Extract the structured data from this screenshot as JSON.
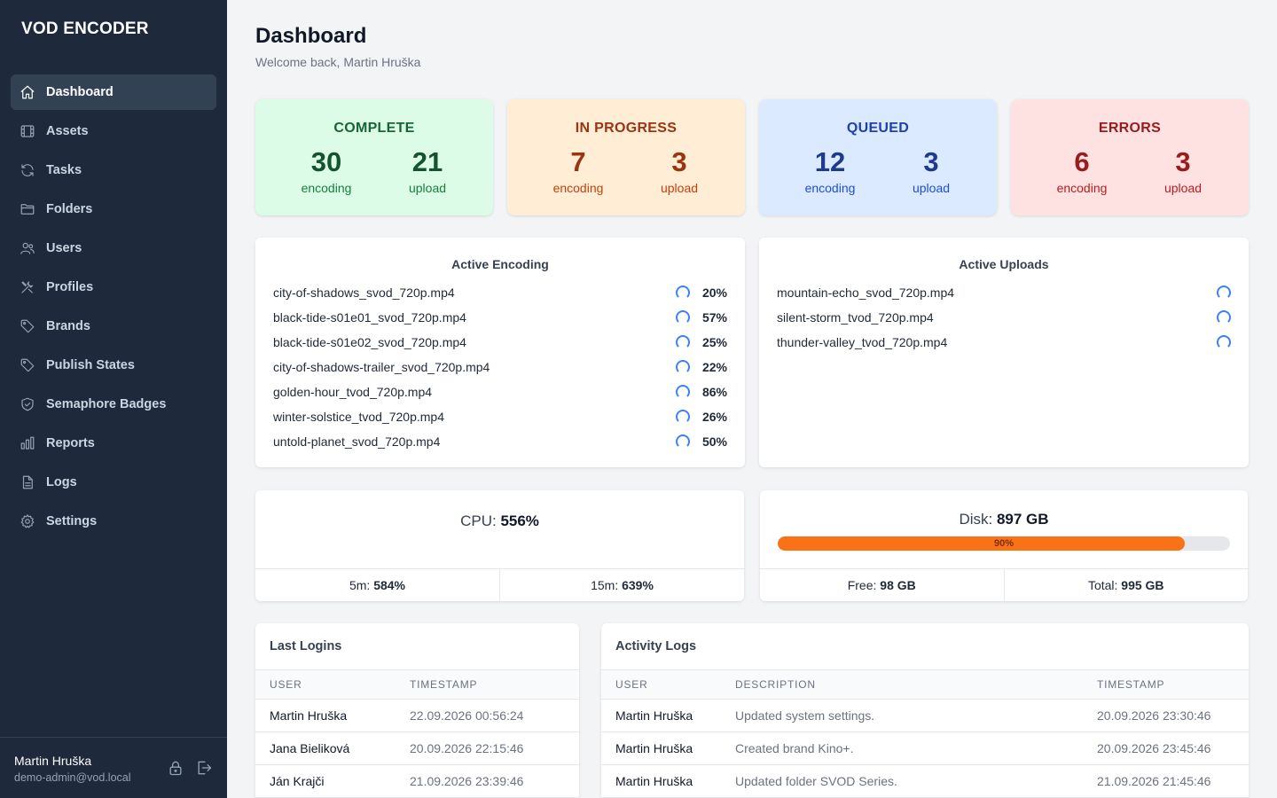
{
  "app": {
    "brand": "VOD ENCODER"
  },
  "sidebar": {
    "items": [
      {
        "label": "Dashboard",
        "icon": "home-icon",
        "active": true
      },
      {
        "label": "Assets",
        "icon": "film-icon"
      },
      {
        "label": "Tasks",
        "icon": "refresh-icon"
      },
      {
        "label": "Folders",
        "icon": "folder-icon"
      },
      {
        "label": "Users",
        "icon": "users-icon"
      },
      {
        "label": "Profiles",
        "icon": "tools-icon"
      },
      {
        "label": "Brands",
        "icon": "tag-icon"
      },
      {
        "label": "Publish States",
        "icon": "tag-icon"
      },
      {
        "label": "Semaphore Badges",
        "icon": "shield-icon"
      },
      {
        "label": "Reports",
        "icon": "bar-chart-icon"
      },
      {
        "label": "Logs",
        "icon": "document-icon"
      },
      {
        "label": "Settings",
        "icon": "gear-icon"
      }
    ],
    "user": {
      "name": "Martin Hruška",
      "email": "demo-admin@vod.local"
    }
  },
  "header": {
    "title": "Dashboard",
    "subtitle": "Welcome back, Martin Hruška"
  },
  "stats": [
    {
      "title": "COMPLETE",
      "encoding": "30",
      "upload": "21",
      "enc_label": "encoding",
      "up_label": "upload",
      "bg": "#dcfce7",
      "title_color": "#166534",
      "num_color": "#14532d",
      "label_color": "#15803d"
    },
    {
      "title": "IN PROGRESS",
      "encoding": "7",
      "upload": "3",
      "enc_label": "encoding",
      "up_label": "upload",
      "bg": "#ffedd5",
      "title_color": "#9a3412",
      "num_color": "#9a3412",
      "label_color": "#c2410c"
    },
    {
      "title": "QUEUED",
      "encoding": "12",
      "upload": "3",
      "enc_label": "encoding",
      "up_label": "upload",
      "bg": "#dbeafe",
      "title_color": "#1e40af",
      "num_color": "#1e3a8a",
      "label_color": "#1d4ed8"
    },
    {
      "title": "ERRORS",
      "encoding": "6",
      "upload": "3",
      "enc_label": "encoding",
      "up_label": "upload",
      "bg": "#fee2e2",
      "title_color": "#991b1b",
      "num_color": "#991b1b",
      "label_color": "#b91c1c"
    }
  ],
  "active_encoding": {
    "title": "Active Encoding",
    "jobs": [
      {
        "file": "city-of-shadows_svod_720p.mp4",
        "progress": "20%"
      },
      {
        "file": "black-tide-s01e01_svod_720p.mp4",
        "progress": "57%"
      },
      {
        "file": "black-tide-s01e02_svod_720p.mp4",
        "progress": "25%"
      },
      {
        "file": "city-of-shadows-trailer_svod_720p.mp4",
        "progress": "22%"
      },
      {
        "file": "golden-hour_tvod_720p.mp4",
        "progress": "86%"
      },
      {
        "file": "winter-solstice_tvod_720p.mp4",
        "progress": "26%"
      },
      {
        "file": "untold-planet_svod_720p.mp4",
        "progress": "50%"
      }
    ]
  },
  "active_uploads": {
    "title": "Active Uploads",
    "jobs": [
      {
        "file": "mountain-echo_svod_720p.mp4"
      },
      {
        "file": "silent-storm_tvod_720p.mp4"
      },
      {
        "file": "thunder-valley_tvod_720p.mp4"
      }
    ]
  },
  "cpu": {
    "label": "CPU:",
    "value": "556%",
    "load5_label": "5m:",
    "load5": "584%",
    "load15_label": "15m:",
    "load15": "639%"
  },
  "disk": {
    "label": "Disk:",
    "value": "897 GB",
    "used_percent": 90,
    "used_label": "90%",
    "free_label": "Free:",
    "free": "98 GB",
    "total_label": "Total:",
    "total": "995 GB"
  },
  "last_logins": {
    "title": "Last Logins",
    "columns": [
      "USER",
      "TIMESTAMP"
    ],
    "rows": [
      {
        "user": "Martin Hruška",
        "timestamp": "22.09.2026 00:56:24"
      },
      {
        "user": "Jana Bieliková",
        "timestamp": "20.09.2026 22:15:46"
      },
      {
        "user": "Ján Krajči",
        "timestamp": "21.09.2026 23:39:46"
      }
    ]
  },
  "activity_logs": {
    "title": "Activity Logs",
    "columns": [
      "USER",
      "DESCRIPTION",
      "TIMESTAMP"
    ],
    "rows": [
      {
        "user": "Martin Hruška",
        "description": "Updated system settings.",
        "timestamp": "20.09.2026 23:30:46"
      },
      {
        "user": "Martin Hruška",
        "description": "Created brand Kino+.",
        "timestamp": "20.09.2026 23:45:46"
      },
      {
        "user": "Martin Hruška",
        "description": "Updated folder SVOD Series.",
        "timestamp": "21.09.2026 21:45:46"
      }
    ]
  }
}
